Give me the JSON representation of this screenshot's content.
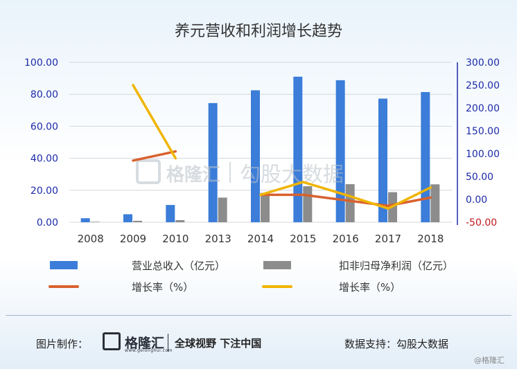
{
  "chart_data": {
    "type": "bar",
    "title": "养元营收和利润增长趋势",
    "categories": [
      "2008",
      "2009",
      "2010",
      "2013",
      "2014",
      "2015",
      "2016",
      "2017",
      "2018"
    ],
    "y_left": {
      "ticks": [
        "100.00",
        "80.00",
        "60.00",
        "40.00",
        "20.00",
        "0.00"
      ],
      "range": [
        0,
        100
      ]
    },
    "y_right": {
      "ticks": [
        "300.00",
        "250.00",
        "200.00",
        "150.00",
        "100.00",
        "50.00",
        "0.00",
        "-50.00"
      ],
      "range": [
        -50,
        300
      ]
    },
    "series": [
      {
        "name": "营业总收入（亿元）",
        "type": "bar",
        "axis": "left",
        "color": "#3b7dd8",
        "values": [
          2.5,
          5.0,
          10.8,
          74.5,
          82.5,
          91.0,
          88.8,
          77.3,
          81.4
        ]
      },
      {
        "name": "扣非归母净利润（亿元）",
        "type": "bar",
        "axis": "left",
        "color": "#8c8c8c",
        "values": [
          0.3,
          0.9,
          1.3,
          15.4,
          18.4,
          22.5,
          23.8,
          18.8,
          23.7
        ]
      },
      {
        "name": "增长率（%）",
        "type": "line",
        "axis": "right",
        "color": "#d8612e",
        "values": [
          null,
          85,
          105,
          null,
          10,
          10,
          -2,
          -14,
          4
        ]
      },
      {
        "name": "增长率（%）",
        "type": "line",
        "axis": "right",
        "color": "#f0b400",
        "values": [
          null,
          250,
          90,
          null,
          10,
          38,
          10,
          -20,
          26
        ]
      }
    ]
  },
  "watermark": {
    "brand": "格隆汇",
    "partner": "勾股大数据"
  },
  "footer": {
    "credit_label": "图片制作：",
    "logo_text": "格隆汇",
    "logo_sub": "www.gelonghui.com",
    "slogan": "全球视野 下注中国",
    "support": "数据支持：勾股大数据",
    "corner": "@格隆汇"
  }
}
